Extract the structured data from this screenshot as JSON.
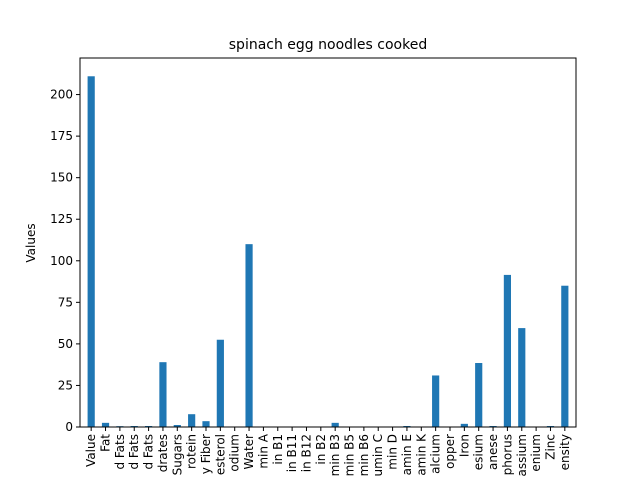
{
  "chart_data": {
    "type": "bar",
    "title": "spinach egg noodles cooked",
    "xlabel": "",
    "ylabel": "Values",
    "ylim": [
      0,
      222
    ],
    "yticks": [
      0,
      25,
      50,
      75,
      100,
      125,
      150,
      175,
      200
    ],
    "color": "#1f77b4",
    "grid": false,
    "legend": "none",
    "categories": [
      "Value",
      "Fat",
      "d Fats",
      "d Fats",
      "d Fats",
      "drates",
      "Sugars",
      "rotein",
      "y Fiber",
      "esterol",
      "odium",
      "Water",
      "min A",
      "in B1",
      "in B11",
      "in B12",
      "in B2",
      "min B3",
      "min B5",
      "min B6",
      "umin C",
      "min D",
      "amin E",
      "amin K",
      "alcium",
      "opper",
      "Iron",
      "esium",
      "anese",
      "phorus",
      "assium",
      "enium",
      "Zinc",
      "ensity"
    ],
    "values": [
      211,
      2.5,
      0.5,
      0.6,
      0.6,
      39,
      1.2,
      7.7,
      3.5,
      52.5,
      0,
      110,
      0,
      0,
      0,
      0,
      0,
      2.5,
      0,
      0,
      0,
      0,
      0.6,
      0,
      31,
      0,
      1.9,
      38.5,
      0.6,
      91.5,
      59.5,
      0,
      0.6,
      85
    ]
  }
}
